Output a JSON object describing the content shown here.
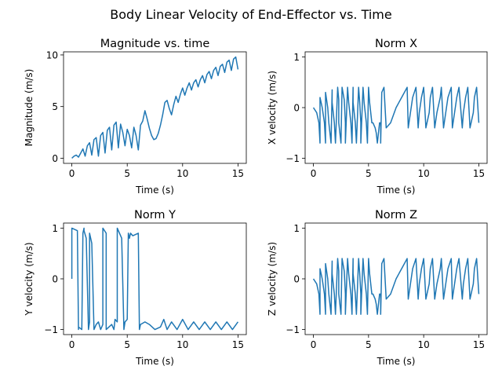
{
  "figure": {
    "title": "Body Linear Velocity of End-Effector vs. Time"
  },
  "chart_data": [
    {
      "type": "line",
      "title": "Magnitude vs. time",
      "xlabel": "Time (s)",
      "ylabel": "Magnitude (m/s)",
      "xlim": [
        -0.75,
        15.75
      ],
      "ylim": [
        -0.5,
        10.3
      ],
      "xticks": [
        0,
        5,
        10,
        15
      ],
      "yticks": [
        0,
        5,
        10
      ],
      "grid": false,
      "series": [
        {
          "color": "#1f77b4",
          "x": [
            0.0,
            0.2,
            0.4,
            0.6,
            0.8,
            1.0,
            1.2,
            1.4,
            1.6,
            1.8,
            2.0,
            2.2,
            2.4,
            2.6,
            2.8,
            3.0,
            3.2,
            3.4,
            3.6,
            3.8,
            4.0,
            4.2,
            4.4,
            4.6,
            4.8,
            5.0,
            5.2,
            5.4,
            5.6,
            5.8,
            6.0,
            6.2,
            6.4,
            6.6,
            6.8,
            7.0,
            7.2,
            7.4,
            7.6,
            7.8,
            8.0,
            8.2,
            8.4,
            8.6,
            8.8,
            9.0,
            9.2,
            9.4,
            9.6,
            9.8,
            10.0,
            10.2,
            10.4,
            10.6,
            10.8,
            11.0,
            11.2,
            11.4,
            11.6,
            11.8,
            12.0,
            12.2,
            12.4,
            12.6,
            12.8,
            13.0,
            13.2,
            13.4,
            13.6,
            13.8,
            14.0,
            14.2,
            14.4,
            14.6,
            14.8,
            15.0
          ],
          "y": [
            0.0,
            0.2,
            0.3,
            0.1,
            0.5,
            0.9,
            0.2,
            1.2,
            1.5,
            0.3,
            1.8,
            2.0,
            0.2,
            2.2,
            2.5,
            0.5,
            2.7,
            3.0,
            0.8,
            3.2,
            3.5,
            1.0,
            3.3,
            2.5,
            1.2,
            2.8,
            2.2,
            1.0,
            3.0,
            2.2,
            0.8,
            3.2,
            3.6,
            4.6,
            3.8,
            2.9,
            2.2,
            1.8,
            1.9,
            2.4,
            3.2,
            4.2,
            5.4,
            5.6,
            4.8,
            4.2,
            5.2,
            6.0,
            5.4,
            6.2,
            6.8,
            6.1,
            6.8,
            7.3,
            6.6,
            7.3,
            7.6,
            6.9,
            7.6,
            8.0,
            7.3,
            8.1,
            8.4,
            7.7,
            8.5,
            8.8,
            8.0,
            8.9,
            9.1,
            8.3,
            9.3,
            9.5,
            8.5,
            9.6,
            9.8,
            8.6
          ]
        }
      ]
    },
    {
      "type": "line",
      "title": "Norm X",
      "xlabel": "Time (s)",
      "ylabel": "X velocity (m/s)",
      "xlim": [
        -0.75,
        15.75
      ],
      "ylim": [
        -1.1,
        1.1
      ],
      "xticks": [
        0,
        5,
        10,
        15
      ],
      "yticks": [
        -1,
        0,
        1
      ],
      "grid": false,
      "series": [
        {
          "color": "#1f77b4",
          "x": [
            0.0,
            0.3,
            0.5,
            0.6,
            0.6,
            0.8,
            1.0,
            1.1,
            1.1,
            1.3,
            1.4,
            1.6,
            1.7,
            1.7,
            1.9,
            2.0,
            2.2,
            2.3,
            2.3,
            2.5,
            2.6,
            2.8,
            2.9,
            2.9,
            3.1,
            3.2,
            3.4,
            3.5,
            3.6,
            3.6,
            3.8,
            3.9,
            4.1,
            4.2,
            4.3,
            4.3,
            4.5,
            4.6,
            4.8,
            4.9,
            5.0,
            5.1,
            5.3,
            5.4,
            5.6,
            5.7,
            5.8,
            6.0,
            6.1,
            6.1,
            6.2,
            6.4,
            6.6,
            7.0,
            7.5,
            8.0,
            8.5,
            8.6,
            8.8,
            9.0,
            9.3,
            9.5,
            9.6,
            9.8,
            10.0,
            10.2,
            10.5,
            10.6,
            10.8,
            11.0,
            11.2,
            11.5,
            11.6,
            11.8,
            12.0,
            12.2,
            12.5,
            12.6,
            12.8,
            13.0,
            13.2,
            13.5,
            13.6,
            13.8,
            14.0,
            14.2,
            14.5,
            14.6,
            14.8,
            15.0
          ],
          "y": [
            0.0,
            -0.1,
            -0.3,
            -0.7,
            0.2,
            0.0,
            -0.3,
            -0.7,
            0.3,
            0.0,
            -0.3,
            -0.7,
            0.35,
            0.1,
            -0.3,
            -0.7,
            0.4,
            0.15,
            -0.3,
            -0.7,
            0.4,
            0.15,
            -0.3,
            -0.7,
            0.4,
            0.1,
            -0.3,
            -0.7,
            0.4,
            0.1,
            -0.3,
            -0.7,
            0.4,
            0.1,
            -0.3,
            -0.7,
            0.4,
            0.1,
            -0.3,
            -0.7,
            0.4,
            0.1,
            -0.3,
            -0.3,
            -0.4,
            -0.5,
            -0.7,
            -0.3,
            -0.3,
            -0.7,
            0.3,
            0.4,
            -0.4,
            -0.3,
            0.0,
            0.2,
            0.4,
            -0.4,
            -0.1,
            0.2,
            0.4,
            -0.4,
            -0.1,
            0.2,
            0.4,
            -0.4,
            -0.1,
            0.2,
            0.4,
            -0.4,
            -0.1,
            0.2,
            0.4,
            -0.4,
            -0.1,
            0.2,
            0.4,
            -0.4,
            -0.1,
            0.2,
            0.4,
            -0.4,
            -0.1,
            0.2,
            0.4,
            -0.4,
            -0.1,
            0.2,
            0.4,
            -0.3
          ]
        }
      ]
    },
    {
      "type": "line",
      "title": "Norm Y",
      "xlabel": "Time (s)",
      "ylabel": "Y velocity (m/s)",
      "xlim": [
        -0.75,
        15.75
      ],
      "ylim": [
        -1.1,
        1.1
      ],
      "xticks": [
        0,
        5,
        10,
        15
      ],
      "yticks": [
        -1,
        0,
        1
      ],
      "grid": false,
      "series": [
        {
          "color": "#1f77b4",
          "x": [
            0.0,
            0.0,
            0.5,
            0.6,
            0.6,
            0.9,
            1.0,
            1.1,
            1.1,
            1.3,
            1.5,
            1.6,
            1.6,
            1.8,
            2.0,
            2.2,
            2.4,
            2.6,
            2.8,
            2.8,
            3.1,
            3.1,
            3.6,
            3.8,
            3.9,
            4.1,
            4.1,
            4.5,
            4.7,
            4.8,
            5.0,
            5.1,
            5.2,
            5.3,
            5.5,
            6.0,
            6.1,
            6.2,
            6.6,
            7.0,
            7.5,
            8.0,
            8.3,
            8.6,
            9.0,
            9.5,
            10.0,
            10.5,
            11.0,
            11.5,
            12.0,
            12.5,
            13.0,
            13.5,
            14.0,
            14.5,
            15.0
          ],
          "y": [
            0.0,
            1.0,
            0.95,
            -1.0,
            -0.95,
            -1.0,
            0.9,
            1.0,
            0.95,
            0.8,
            -1.0,
            -0.85,
            0.9,
            0.7,
            -1.0,
            -0.9,
            -0.85,
            -1.0,
            -0.9,
            1.0,
            0.9,
            -1.0,
            -0.9,
            -1.0,
            -0.8,
            -0.85,
            1.0,
            0.8,
            -1.0,
            -0.85,
            -0.8,
            0.9,
            0.8,
            0.9,
            0.85,
            0.9,
            -1.0,
            -0.9,
            -0.85,
            -0.9,
            -1.0,
            -0.95,
            -0.8,
            -1.0,
            -0.85,
            -1.0,
            -0.8,
            -1.0,
            -0.85,
            -1.0,
            -0.85,
            -1.0,
            -0.85,
            -1.0,
            -0.85,
            -1.0,
            -0.85
          ]
        }
      ]
    },
    {
      "type": "line",
      "title": "Norm Z",
      "xlabel": "Time (s)",
      "ylabel": "Z velocity (m/s)",
      "xlim": [
        -0.75,
        15.75
      ],
      "ylim": [
        -1.1,
        1.1
      ],
      "xticks": [
        0,
        5,
        10,
        15
      ],
      "yticks": [
        -1,
        0,
        1
      ],
      "grid": false,
      "series": [
        {
          "color": "#1f77b4",
          "x": [
            0.0,
            0.3,
            0.5,
            0.6,
            0.6,
            0.8,
            1.0,
            1.1,
            1.1,
            1.3,
            1.4,
            1.6,
            1.7,
            1.7,
            1.9,
            2.0,
            2.2,
            2.3,
            2.3,
            2.5,
            2.6,
            2.8,
            2.9,
            2.9,
            3.1,
            3.2,
            3.4,
            3.5,
            3.6,
            3.6,
            3.8,
            3.9,
            4.1,
            4.2,
            4.3,
            4.3,
            4.5,
            4.6,
            4.8,
            4.9,
            5.0,
            5.1,
            5.3,
            5.4,
            5.6,
            5.7,
            5.8,
            6.0,
            6.1,
            6.1,
            6.2,
            6.4,
            6.6,
            7.0,
            7.5,
            8.0,
            8.5,
            8.6,
            8.8,
            9.0,
            9.3,
            9.5,
            9.6,
            9.8,
            10.0,
            10.2,
            10.5,
            10.6,
            10.8,
            11.0,
            11.2,
            11.5,
            11.6,
            11.8,
            12.0,
            12.2,
            12.5,
            12.6,
            12.8,
            13.0,
            13.2,
            13.5,
            13.6,
            13.8,
            14.0,
            14.2,
            14.5,
            14.6,
            14.8,
            15.0
          ],
          "y": [
            0.0,
            -0.1,
            -0.3,
            -0.7,
            0.2,
            0.0,
            -0.3,
            -0.7,
            0.3,
            0.0,
            -0.3,
            -0.7,
            0.35,
            0.1,
            -0.3,
            -0.7,
            0.4,
            0.15,
            -0.3,
            -0.7,
            0.4,
            0.15,
            -0.3,
            -0.7,
            0.4,
            0.1,
            -0.3,
            -0.7,
            0.4,
            0.1,
            -0.3,
            -0.7,
            0.4,
            0.1,
            -0.3,
            -0.7,
            0.4,
            0.1,
            -0.3,
            -0.7,
            0.4,
            0.1,
            -0.3,
            -0.3,
            -0.4,
            -0.5,
            -0.7,
            -0.3,
            -0.3,
            -0.7,
            0.3,
            0.4,
            -0.4,
            -0.3,
            0.0,
            0.2,
            0.4,
            -0.4,
            -0.1,
            0.2,
            0.4,
            -0.4,
            -0.1,
            0.2,
            0.4,
            -0.4,
            -0.1,
            0.2,
            0.4,
            -0.4,
            -0.1,
            0.2,
            0.4,
            -0.4,
            -0.1,
            0.2,
            0.4,
            -0.4,
            -0.1,
            0.2,
            0.4,
            -0.4,
            -0.1,
            0.2,
            0.4,
            -0.4,
            -0.1,
            0.2,
            0.4,
            -0.3
          ]
        }
      ]
    }
  ]
}
